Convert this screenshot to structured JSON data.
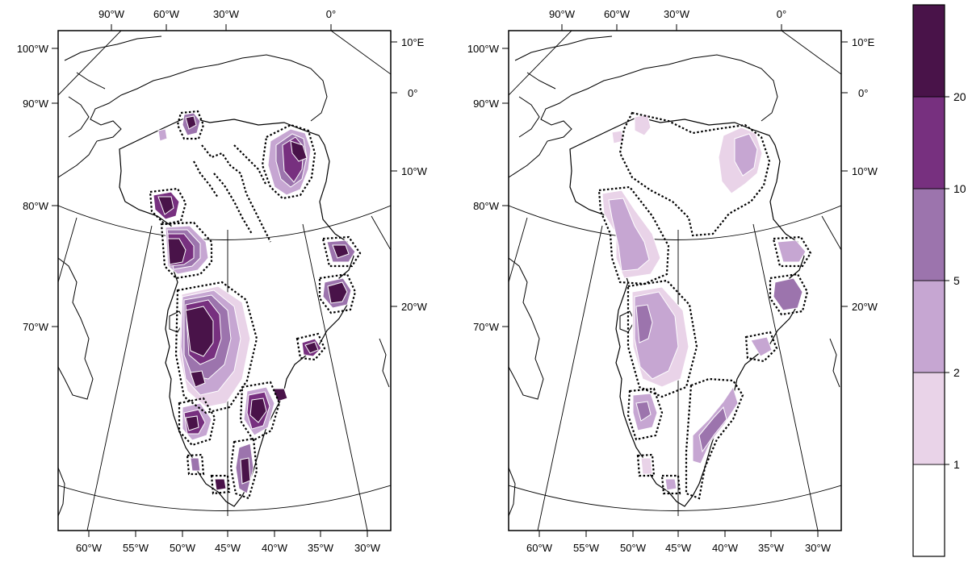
{
  "panels": [
    {
      "name": "left",
      "top_labels": [
        "90°W",
        "60°W",
        "30°W",
        "0°"
      ],
      "bottom_labels": [
        "60°W",
        "55°W",
        "50°W",
        "45°W",
        "40°W",
        "35°W",
        "30°W"
      ],
      "left_labels": [
        "100°W",
        "90°W",
        "80°W",
        "70°W"
      ],
      "right_labels": [
        "10°E",
        "0°",
        "10°W",
        "20°W"
      ]
    },
    {
      "name": "right",
      "top_labels": [
        "90°W",
        "60°W",
        "30°W",
        "0°"
      ],
      "bottom_labels": [
        "60°W",
        "55°W",
        "50°W",
        "45°W",
        "40°W",
        "35°W",
        "30°W"
      ],
      "left_labels": [
        "100°W",
        "90°W",
        "80°W",
        "70°W"
      ],
      "right_labels": [
        "10°E",
        "0°",
        "10°W",
        "20°W"
      ]
    }
  ],
  "colorbar": {
    "breaks": [
      "1",
      "2",
      "5",
      "10",
      "20"
    ],
    "colors": [
      "#ffffff",
      "#e9d3e8",
      "#c6a6d2",
      "#9c74ad",
      "#77307f",
      "#491349"
    ]
  }
}
